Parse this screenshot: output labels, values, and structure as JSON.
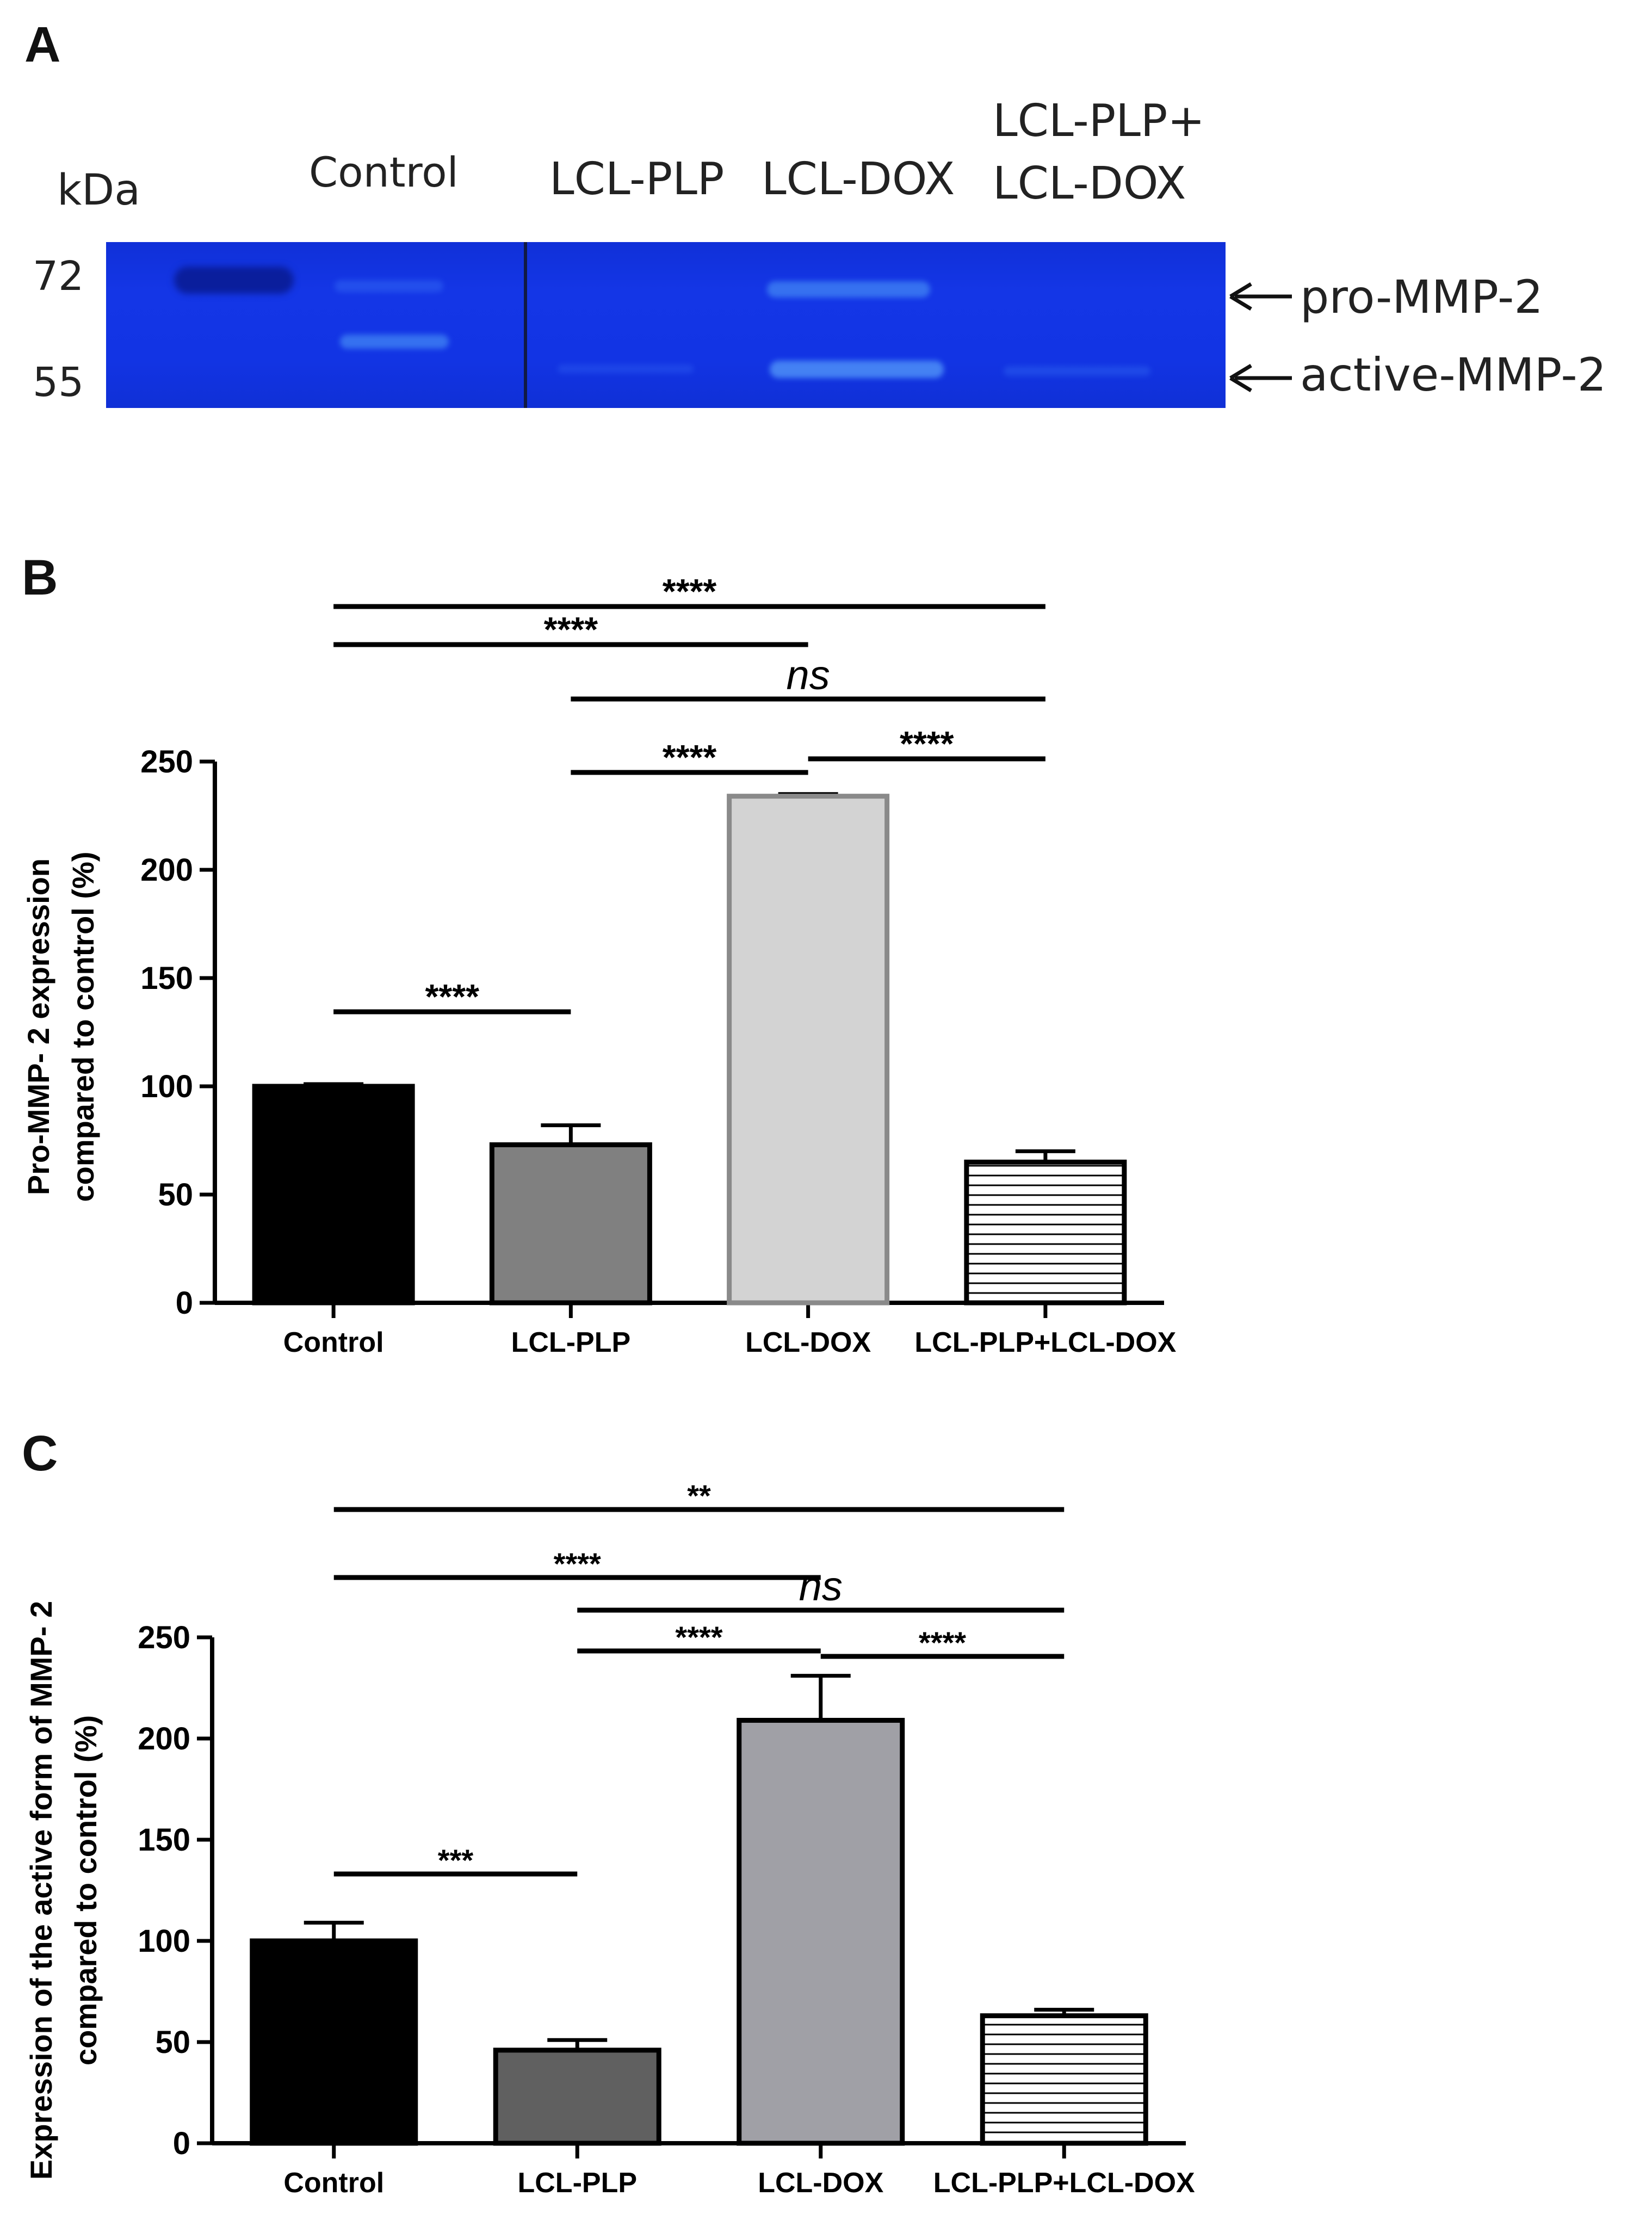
{
  "panel_a": {
    "letter": "A",
    "kda_label": "kDa",
    "markers": [
      "72",
      "55"
    ],
    "lanes": [
      "Control",
      "LCL-PLP",
      "LCL-DOX",
      "LCL-PLP+",
      "LCL-DOX"
    ],
    "annotations": [
      "pro-MMP-2",
      "active-MMP-2"
    ],
    "colors": {
      "gel": "#1234e4",
      "band": "#3c7cf2",
      "ladder": "#0a1e9c"
    }
  },
  "chart_data": [
    {
      "panel": "B",
      "type": "bar",
      "categories": [
        "Control",
        "LCL-PLP",
        "LCL-DOX",
        "LCL-PLP+LCL-DOX"
      ],
      "values": [
        100,
        73,
        234,
        65
      ],
      "errors": [
        1,
        9,
        1,
        5
      ],
      "ylabel": "Pro-MMP- 2 expression compared to control (%)",
      "ylabel_lines": [
        "Pro-MMP- 2 expression",
        "compared to control (%)"
      ],
      "ylim": [
        0,
        250
      ],
      "ticks": [
        0,
        50,
        100,
        150,
        200,
        250
      ],
      "bar_fills": [
        "#000000",
        "#808080",
        "#d3d3d3",
        "hatch"
      ],
      "bar_strokes": [
        "#000000",
        "#000000",
        "#8a8a8a",
        "#000000"
      ],
      "significance": [
        {
          "from": 0,
          "to": 3,
          "label": "****"
        },
        {
          "from": 0,
          "to": 2,
          "label": "****"
        },
        {
          "from": 1,
          "to": 3,
          "label": "ns"
        },
        {
          "from": 1,
          "to": 2,
          "label": "****"
        },
        {
          "from": 2,
          "to": 3,
          "label": "****"
        },
        {
          "from": 0,
          "to": 1,
          "label": "****"
        }
      ]
    },
    {
      "panel": "C",
      "type": "bar",
      "categories": [
        "Control",
        "LCL-PLP",
        "LCL-DOX",
        "LCL-PLP+LCL-DOX"
      ],
      "values": [
        100,
        46,
        209,
        63
      ],
      "errors": [
        9,
        5,
        22,
        3
      ],
      "ylabel": "Expression of the active form of MMP- 2 compared to control (%)",
      "ylabel_lines": [
        "Expression of the active form of MMP- 2",
        "compared to control (%)"
      ],
      "ylim": [
        0,
        250
      ],
      "ticks": [
        0,
        50,
        100,
        150,
        200,
        250
      ],
      "bar_fills": [
        "#000000",
        "#606060",
        "#a0a0a6",
        "hatch"
      ],
      "bar_strokes": [
        "#000000",
        "#000000",
        "#000000",
        "#000000"
      ],
      "significance": [
        {
          "from": 0,
          "to": 3,
          "label": "**"
        },
        {
          "from": 0,
          "to": 2,
          "label": "****"
        },
        {
          "from": 1,
          "to": 3,
          "label": "ns"
        },
        {
          "from": 1,
          "to": 2,
          "label": "****"
        },
        {
          "from": 2,
          "to": 3,
          "label": "****"
        },
        {
          "from": 0,
          "to": 1,
          "label": "***"
        }
      ]
    }
  ]
}
